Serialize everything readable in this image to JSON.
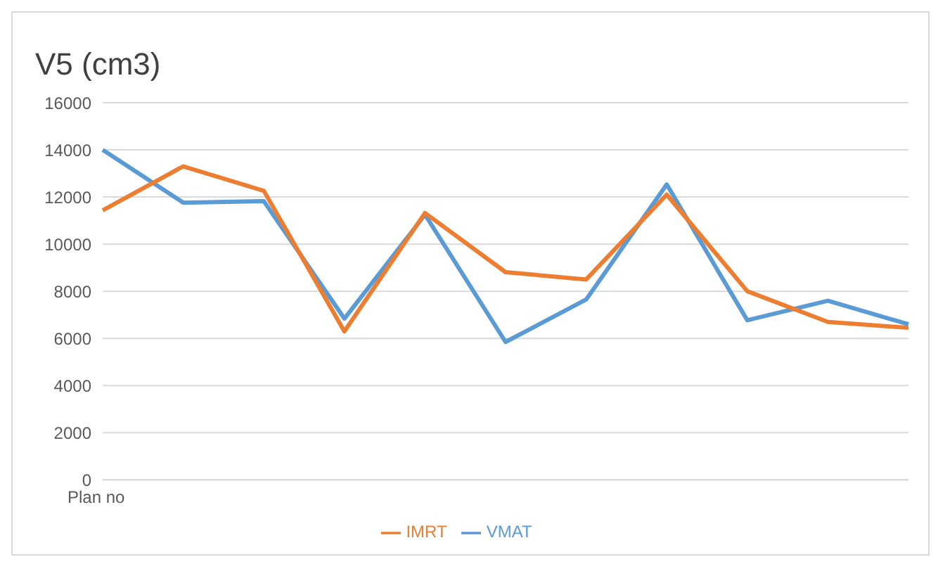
{
  "chart_data": {
    "type": "line",
    "title": "V5 (cm3)",
    "categories": [
      "Plan no",
      null,
      null,
      null,
      null,
      null,
      null,
      null,
      null,
      null,
      null
    ],
    "series": [
      {
        "name": "VMAT",
        "color": "#5b9bd5",
        "values": [
          14000,
          11760,
          11820,
          6840,
          11250,
          5850,
          7650,
          12530,
          6770,
          7600,
          6600
        ]
      },
      {
        "name": "IMRT",
        "color": "#ed7d31",
        "values": [
          11430,
          13300,
          12260,
          6300,
          11320,
          8810,
          8500,
          12100,
          8000,
          6700,
          6450
        ]
      }
    ],
    "ylim": [
      0,
      16000
    ],
    "yticks": [
      0,
      2000,
      4000,
      6000,
      8000,
      10000,
      12000,
      14000,
      16000
    ],
    "grid": "y",
    "legend": "bottom",
    "marker": "none",
    "line_style": "solid"
  }
}
